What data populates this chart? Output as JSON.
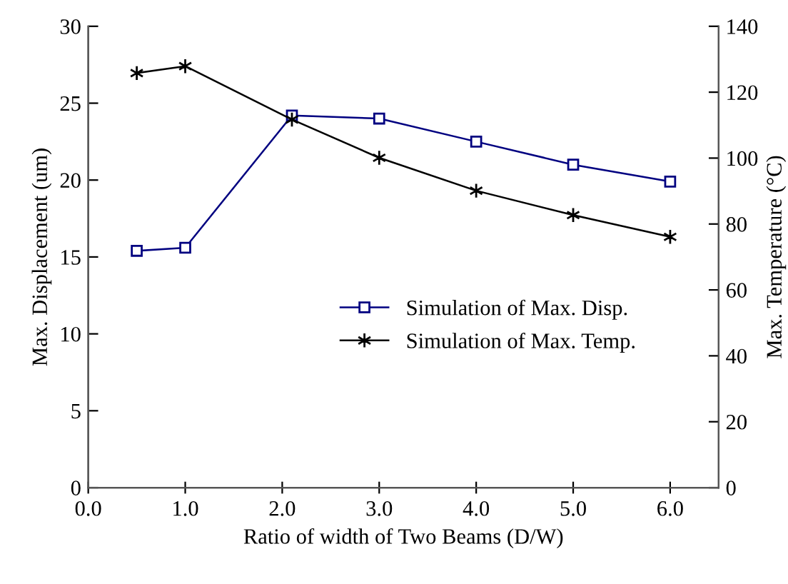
{
  "chart_data": {
    "type": "line",
    "xlabel": "Ratio of width of Two Beams (D/W)",
    "ylabel": "Max. Displacement (um)",
    "y2label": "Max. Temperature (°C)",
    "xlim": [
      0,
      6.5
    ],
    "xticks": [
      {
        "value": 0,
        "label": "0.0"
      },
      {
        "value": 1,
        "label": "1.0"
      },
      {
        "value": 2,
        "label": "2.0"
      },
      {
        "value": 3,
        "label": "3.0"
      },
      {
        "value": 4,
        "label": "4.0"
      },
      {
        "value": 5,
        "label": "5.0"
      },
      {
        "value": 6,
        "label": "6.0"
      }
    ],
    "ylim": [
      0,
      30
    ],
    "yticks": [
      0,
      5,
      10,
      15,
      20,
      25,
      30
    ],
    "y2lim": [
      0,
      140
    ],
    "y2ticks": [
      0,
      20,
      40,
      60,
      80,
      100,
      120,
      140
    ],
    "x": [
      0.5,
      1.0,
      2.1,
      3.0,
      4.0,
      5.0,
      6.0
    ],
    "grid": false,
    "legend": "right",
    "line_style": "solid",
    "series": [
      {
        "name": "Simulation of Max. Disp.",
        "color": "#000080",
        "marker": "square",
        "values": [
          15.4,
          15.6,
          24.2,
          24.0,
          22.5,
          21.0,
          19.9
        ]
      },
      {
        "name": "Simulation of Max. Temp.",
        "color": "#000000",
        "marker": "cross",
        "axis": "y2",
        "values": [
          125.8,
          127.9,
          111.7,
          100.1,
          90.1,
          82.7,
          76.1
        ]
      }
    ]
  }
}
